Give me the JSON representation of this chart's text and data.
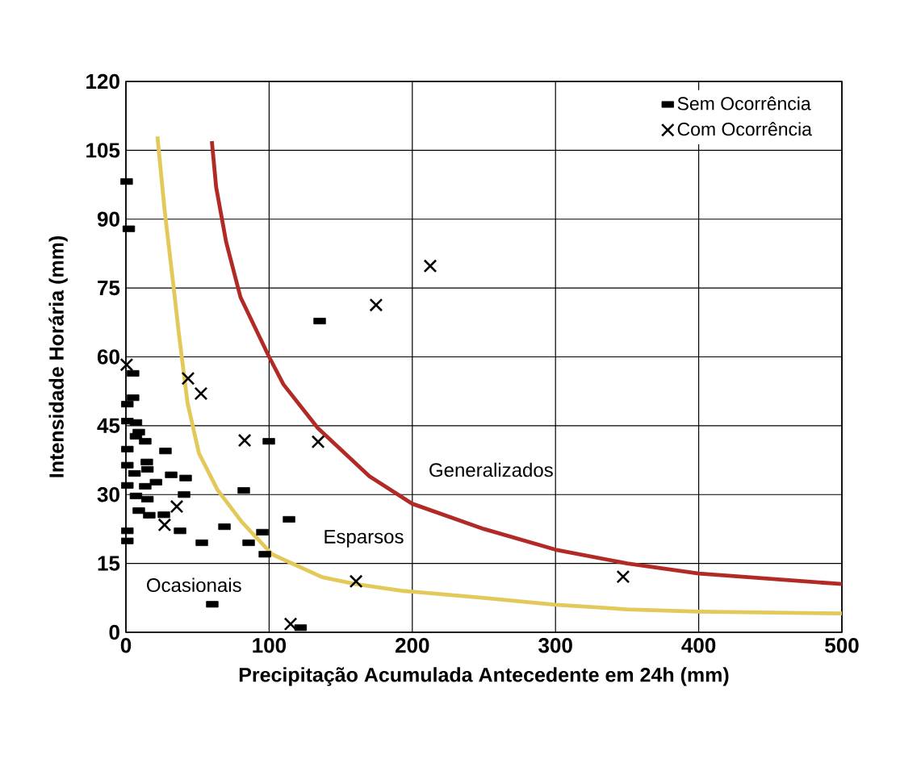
{
  "chart_data": {
    "type": "scatter",
    "xlabel": "Precipitação Acumulada Antecedente em 24h (mm)",
    "ylabel": "Intensidade Horária (mm)",
    "xlim": [
      0,
      500
    ],
    "ylim": [
      0,
      120
    ],
    "xticks": [
      0,
      100,
      200,
      300,
      400,
      500
    ],
    "yticks": [
      0,
      15,
      30,
      45,
      60,
      75,
      90,
      105,
      120
    ],
    "grid": true,
    "legend": "top right",
    "series": [
      {
        "name": "Sem Ocorrência",
        "color": "#000000",
        "marker": "square",
        "x": [
          0.5,
          2,
          5,
          5,
          1,
          1,
          7,
          9,
          7,
          13.5,
          1,
          27.6,
          1,
          14.6,
          15,
          6,
          31.6,
          41.7,
          1,
          13.5,
          21,
          40.6,
          7,
          15,
          9,
          16.3,
          26.5,
          37.8,
          1,
          1,
          53,
          68.8,
          85.7,
          95.3,
          97,
          82.3,
          99.8,
          113.9,
          60.3,
          135.3,
          122
        ],
        "values": [
          98.2,
          87.9,
          56.4,
          51.1,
          49.7,
          46,
          45.7,
          43.6,
          42.7,
          41.6,
          39.9,
          39.5,
          36.4,
          37.1,
          35.5,
          34.6,
          34.3,
          33.6,
          32,
          31.8,
          32.7,
          30,
          29.7,
          29,
          26.5,
          25.5,
          25.6,
          22.1,
          22.1,
          19.9,
          19.5,
          23,
          19.5,
          21.8,
          17,
          30.9,
          41.6,
          24.6,
          6.1,
          67.8,
          1
        ]
      },
      {
        "name": "Com Ocorrência",
        "color": "#000000",
        "marker": "cross",
        "x": [
          0.5,
          43.4,
          52.4,
          82.9,
          134.2,
          174.7,
          212.5,
          35.5,
          27,
          160.7,
          115,
          347.2
        ],
        "values": [
          58.3,
          55.3,
          52,
          41.8,
          41.5,
          71.3,
          79.8,
          27.4,
          23.4,
          11.1,
          1.8,
          12.1
        ]
      },
      {
        "type": "line",
        "color": "#e3c95a",
        "marker": "none",
        "x": [
          22,
          27,
          33,
          37,
          43,
          51,
          64,
          81,
          102,
          137,
          160,
          194,
          250,
          300,
          350,
          400,
          500
        ],
        "values": [
          108,
          92,
          76,
          65,
          50,
          39,
          31,
          24,
          17,
          12,
          10.5,
          9,
          7.5,
          6,
          5,
          4.5,
          4.1
        ]
      },
      {
        "type": "line",
        "color": "#b22a25",
        "marker": "none",
        "x": [
          60,
          63,
          70,
          80,
          100,
          110,
          134,
          170,
          200,
          250,
          300,
          350,
          400,
          500
        ],
        "values": [
          107,
          97,
          85,
          73,
          60,
          54,
          44.5,
          34,
          28,
          22.5,
          18,
          15,
          12.8,
          10.5
        ]
      }
    ],
    "annotations": [
      "Ocasionais",
      "Esparsos",
      "Generalizados"
    ]
  }
}
